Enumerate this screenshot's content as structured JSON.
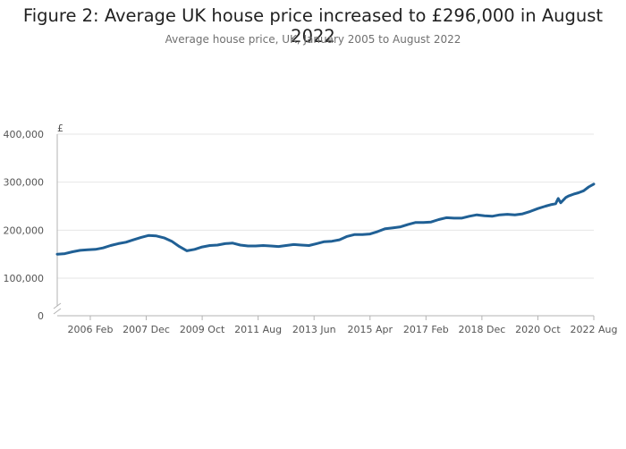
{
  "title": "Figure 2: Average UK house price increased to £296,000 in August 2022",
  "subtitle": "Average house price, UK, January 2005 to August 2022",
  "colors": {
    "series": "#206095",
    "grid": "#e6e6e6",
    "axis": "#b3b3b3"
  },
  "chart_data": {
    "type": "line",
    "title": "Figure 2: Average UK house price increased to £296,000 in August 2022",
    "subtitle": "Average house price, UK, January 2005 to August 2022",
    "xlabel": "",
    "ylabel": "£",
    "y_unit": "£",
    "ylim": [
      0,
      400000
    ],
    "y_axis_break": true,
    "grid": "horizontal",
    "legend": "none",
    "y_ticks": [
      {
        "value": 0,
        "label": "0"
      },
      {
        "value": 100000,
        "label": "100,000"
      },
      {
        "value": 200000,
        "label": "200,000"
      },
      {
        "value": 300000,
        "label": "300,000"
      },
      {
        "value": 400000,
        "label": "400,000"
      }
    ],
    "x_ticks": [
      {
        "value": "2006-02",
        "label": "2006 Feb"
      },
      {
        "value": "2007-12",
        "label": "2007 Dec"
      },
      {
        "value": "2009-10",
        "label": "2009 Oct"
      },
      {
        "value": "2011-08",
        "label": "2011 Aug"
      },
      {
        "value": "2013-06",
        "label": "2013 Jun"
      },
      {
        "value": "2015-04",
        "label": "2015 Apr"
      },
      {
        "value": "2017-02",
        "label": "2017 Feb"
      },
      {
        "value": "2018-12",
        "label": "2018 Dec"
      },
      {
        "value": "2020-10",
        "label": "2020 Oct"
      },
      {
        "value": "2022-08",
        "label": "2022 Aug"
      }
    ],
    "series": [
      {
        "points": [
          [
            "2005-01",
            150000
          ],
          [
            "2005-04",
            151000
          ],
          [
            "2005-07",
            155000
          ],
          [
            "2005-10",
            158000
          ],
          [
            "2006-01",
            159000
          ],
          [
            "2006-04",
            160000
          ],
          [
            "2006-07",
            163000
          ],
          [
            "2006-10",
            168000
          ],
          [
            "2007-01",
            172000
          ],
          [
            "2007-04",
            175000
          ],
          [
            "2007-07",
            180000
          ],
          [
            "2007-10",
            185000
          ],
          [
            "2008-01",
            189000
          ],
          [
            "2008-04",
            188000
          ],
          [
            "2008-07",
            184000
          ],
          [
            "2008-10",
            177000
          ],
          [
            "2009-01",
            166000
          ],
          [
            "2009-04",
            157000
          ],
          [
            "2009-07",
            160000
          ],
          [
            "2009-10",
            165000
          ],
          [
            "2010-01",
            168000
          ],
          [
            "2010-04",
            169000
          ],
          [
            "2010-07",
            172000
          ],
          [
            "2010-10",
            173000
          ],
          [
            "2011-01",
            169000
          ],
          [
            "2011-04",
            167000
          ],
          [
            "2011-07",
            167000
          ],
          [
            "2011-10",
            168000
          ],
          [
            "2012-01",
            167000
          ],
          [
            "2012-04",
            166000
          ],
          [
            "2012-07",
            168000
          ],
          [
            "2012-10",
            170000
          ],
          [
            "2013-01",
            169000
          ],
          [
            "2013-04",
            168000
          ],
          [
            "2013-07",
            172000
          ],
          [
            "2013-10",
            176000
          ],
          [
            "2014-01",
            177000
          ],
          [
            "2014-04",
            180000
          ],
          [
            "2014-07",
            187000
          ],
          [
            "2014-10",
            191000
          ],
          [
            "2015-01",
            191000
          ],
          [
            "2015-04",
            192000
          ],
          [
            "2015-07",
            197000
          ],
          [
            "2015-10",
            203000
          ],
          [
            "2016-01",
            205000
          ],
          [
            "2016-04",
            207000
          ],
          [
            "2016-07",
            212000
          ],
          [
            "2016-10",
            216000
          ],
          [
            "2017-01",
            216000
          ],
          [
            "2017-04",
            217000
          ],
          [
            "2017-07",
            222000
          ],
          [
            "2017-10",
            226000
          ],
          [
            "2018-01",
            225000
          ],
          [
            "2018-04",
            225000
          ],
          [
            "2018-07",
            229000
          ],
          [
            "2018-10",
            232000
          ],
          [
            "2019-01",
            230000
          ],
          [
            "2019-04",
            229000
          ],
          [
            "2019-07",
            232000
          ],
          [
            "2019-10",
            233000
          ],
          [
            "2020-01",
            232000
          ],
          [
            "2020-04",
            234000
          ],
          [
            "2020-07",
            239000
          ],
          [
            "2020-10",
            245000
          ],
          [
            "2021-01",
            250000
          ],
          [
            "2021-03",
            253000
          ],
          [
            "2021-05",
            255000
          ],
          [
            "2021-06",
            266000
          ],
          [
            "2021-07",
            257000
          ],
          [
            "2021-09",
            268000
          ],
          [
            "2021-10",
            271000
          ],
          [
            "2021-12",
            275000
          ],
          [
            "2022-02",
            278000
          ],
          [
            "2022-04",
            282000
          ],
          [
            "2022-06",
            290000
          ],
          [
            "2022-08",
            296000
          ]
        ]
      }
    ]
  }
}
